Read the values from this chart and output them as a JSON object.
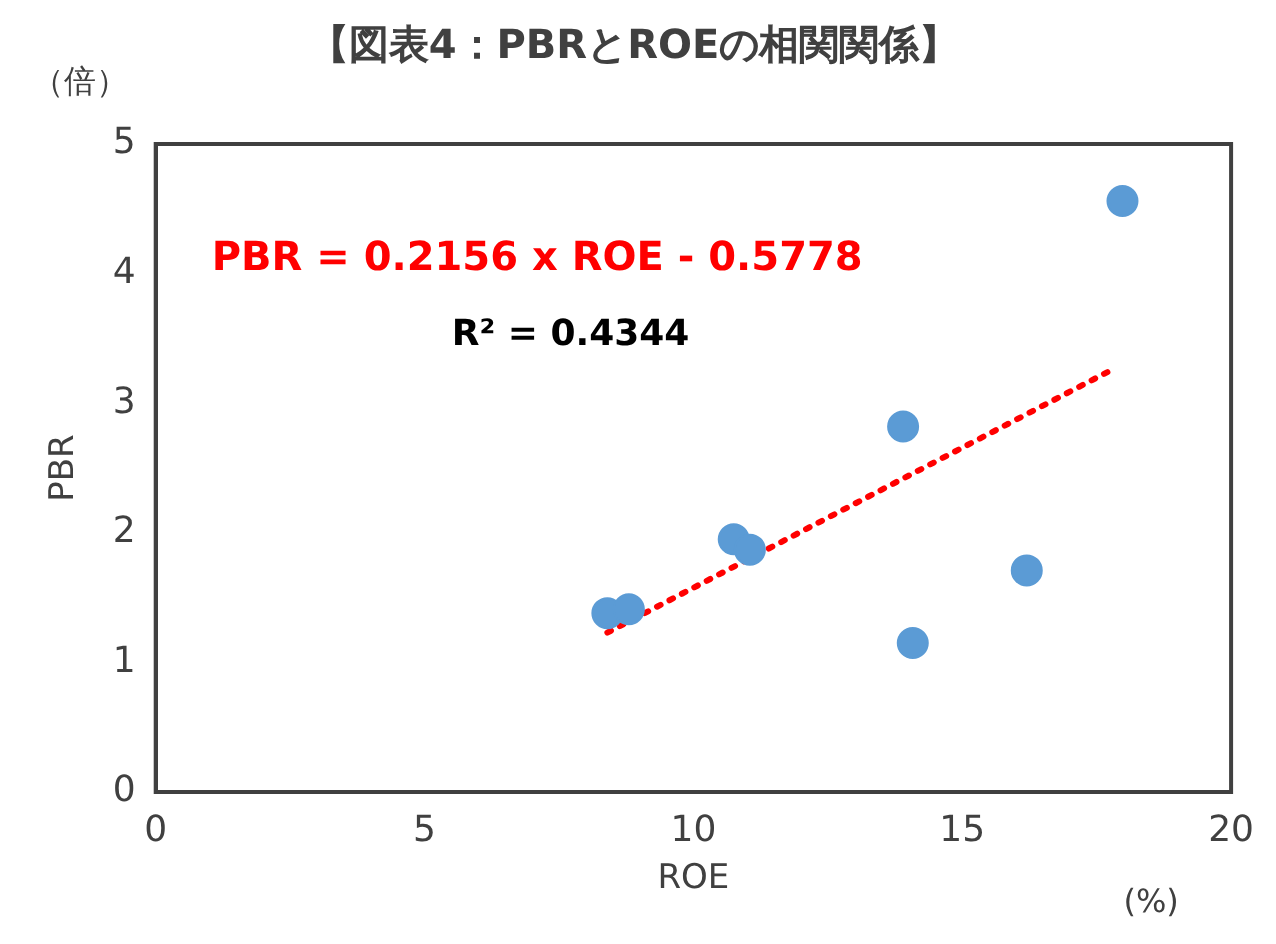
{
  "chart_data": {
    "type": "scatter",
    "title": "【図表4：PBRとROEの相関関係】",
    "xlabel": "ROE",
    "ylabel": "PBR",
    "xlim": [
      0,
      20
    ],
    "xticks": [
      0,
      5,
      10,
      15,
      20
    ],
    "ylim": [
      0,
      5
    ],
    "yticks": [
      0,
      1,
      2,
      3,
      4,
      5
    ],
    "grid": false,
    "legend": false,
    "marker": "circle",
    "series": [
      {
        "color": "#5b9bd5",
        "x": [
          8.4,
          8.8,
          10.75,
          11.05,
          13.9,
          14.08,
          16.2,
          17.98
        ],
        "values": [
          1.38,
          1.41,
          1.95,
          1.87,
          2.82,
          1.15,
          1.71,
          4.56
        ]
      },
      {
        "type": "line",
        "color": "#ff0000",
        "line_style": "dotted",
        "marker": "none",
        "x": [
          8.4,
          17.7
        ],
        "values": [
          1.23,
          3.24
        ]
      }
    ],
    "annotations": [
      "PBR = 0.2156 x ROE - 0.5778",
      "R² = 0.4344",
      "（倍）",
      "(%)"
    ]
  }
}
